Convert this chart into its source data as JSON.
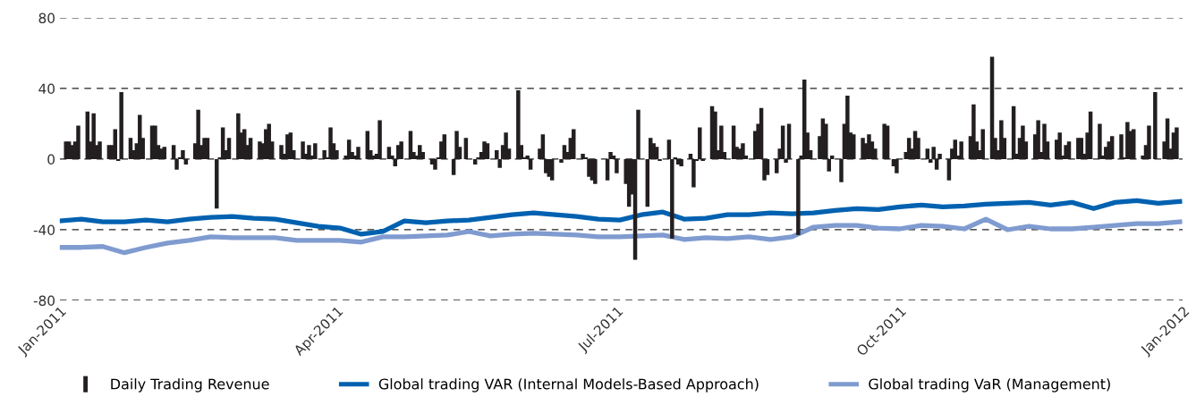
{
  "chart_data": {
    "type": "bar",
    "grid": "y",
    "legend": "bottom",
    "ylim": [
      -80,
      80
    ],
    "yticks": [
      80,
      40,
      0,
      -40,
      -80
    ],
    "xlim": [
      "2011-01-01",
      "2012-01-01"
    ],
    "xticks": [
      {
        "value": "2011-01-01",
        "label": "Jan-2011"
      },
      {
        "value": "2011-04-01",
        "label": "Apr-2011"
      },
      {
        "value": "2011-07-01",
        "label": "Jul-2011"
      },
      {
        "value": "2011-10-01",
        "label": "Oct-2011"
      },
      {
        "value": "2012-01-01",
        "label": "Jan-2012"
      }
    ],
    "series": [
      {
        "name": "Daily Trading Revenue",
        "color": "#231f20",
        "x": [
          "2011-01-03",
          "2011-01-04",
          "2011-01-05",
          "2011-01-06",
          "2011-01-07",
          "2011-01-10",
          "2011-01-11",
          "2011-01-12",
          "2011-01-13",
          "2011-01-14",
          "2011-01-17",
          "2011-01-18",
          "2011-01-19",
          "2011-01-20",
          "2011-01-21",
          "2011-01-24",
          "2011-01-25",
          "2011-01-26",
          "2011-01-27",
          "2011-01-28",
          "2011-01-31",
          "2011-02-01",
          "2011-02-02",
          "2011-02-03",
          "2011-02-04",
          "2011-02-07",
          "2011-02-08",
          "2011-02-09",
          "2011-02-10",
          "2011-02-11",
          "2011-02-14",
          "2011-02-15",
          "2011-02-16",
          "2011-02-17",
          "2011-02-18",
          "2011-02-21",
          "2011-02-22",
          "2011-02-23",
          "2011-02-24",
          "2011-02-25",
          "2011-02-28",
          "2011-03-01",
          "2011-03-02",
          "2011-03-03",
          "2011-03-04",
          "2011-03-07",
          "2011-03-08",
          "2011-03-09",
          "2011-03-10",
          "2011-03-11",
          "2011-03-14",
          "2011-03-15",
          "2011-03-16",
          "2011-03-17",
          "2011-03-18",
          "2011-03-21",
          "2011-03-22",
          "2011-03-23",
          "2011-03-24",
          "2011-03-25",
          "2011-03-28",
          "2011-03-29",
          "2011-03-30",
          "2011-03-31",
          "2011-04-01",
          "2011-04-04",
          "2011-04-05",
          "2011-04-06",
          "2011-04-07",
          "2011-04-08",
          "2011-04-11",
          "2011-04-12",
          "2011-04-13",
          "2011-04-14",
          "2011-04-15",
          "2011-04-18",
          "2011-04-19",
          "2011-04-20",
          "2011-04-21",
          "2011-04-22",
          "2011-04-25",
          "2011-04-26",
          "2011-04-27",
          "2011-04-28",
          "2011-04-29",
          "2011-05-02",
          "2011-05-03",
          "2011-05-04",
          "2011-05-05",
          "2011-05-06",
          "2011-05-09",
          "2011-05-10",
          "2011-05-11",
          "2011-05-12",
          "2011-05-13",
          "2011-05-16",
          "2011-05-17",
          "2011-05-18",
          "2011-05-19",
          "2011-05-20",
          "2011-05-23",
          "2011-05-24",
          "2011-05-25",
          "2011-05-26",
          "2011-05-27",
          "2011-05-30",
          "2011-05-31",
          "2011-06-01",
          "2011-06-02",
          "2011-06-03",
          "2011-06-06",
          "2011-06-07",
          "2011-06-08",
          "2011-06-09",
          "2011-06-10",
          "2011-06-13",
          "2011-06-14",
          "2011-06-15",
          "2011-06-16",
          "2011-06-17",
          "2011-06-20",
          "2011-06-21",
          "2011-06-22",
          "2011-06-23",
          "2011-06-24",
          "2011-06-27",
          "2011-06-28",
          "2011-06-29",
          "2011-06-30",
          "2011-07-01",
          "2011-07-04",
          "2011-07-05",
          "2011-07-06",
          "2011-07-07",
          "2011-07-08",
          "2011-07-11",
          "2011-07-12",
          "2011-07-13",
          "2011-07-14",
          "2011-07-15",
          "2011-07-18",
          "2011-07-19",
          "2011-07-20",
          "2011-07-21",
          "2011-07-22",
          "2011-07-25",
          "2011-07-26",
          "2011-07-27",
          "2011-07-28",
          "2011-07-29",
          "2011-08-01",
          "2011-08-02",
          "2011-08-03",
          "2011-08-04",
          "2011-08-05",
          "2011-08-08",
          "2011-08-09",
          "2011-08-10",
          "2011-08-11",
          "2011-08-12",
          "2011-08-15",
          "2011-08-16",
          "2011-08-17",
          "2011-08-18",
          "2011-08-19",
          "2011-08-22",
          "2011-08-23",
          "2011-08-24",
          "2011-08-25",
          "2011-08-26",
          "2011-08-29",
          "2011-08-30",
          "2011-08-31",
          "2011-09-01",
          "2011-09-02",
          "2011-09-05",
          "2011-09-06",
          "2011-09-07",
          "2011-09-08",
          "2011-09-09",
          "2011-09-12",
          "2011-09-13",
          "2011-09-14",
          "2011-09-15",
          "2011-09-16",
          "2011-09-19",
          "2011-09-20",
          "2011-09-21",
          "2011-09-22",
          "2011-09-23",
          "2011-09-26",
          "2011-09-27",
          "2011-09-28",
          "2011-09-29",
          "2011-09-30",
          "2011-10-03",
          "2011-10-04",
          "2011-10-05",
          "2011-10-06",
          "2011-10-07",
          "2011-10-10",
          "2011-10-11",
          "2011-10-12",
          "2011-10-13",
          "2011-10-14",
          "2011-10-17",
          "2011-10-18",
          "2011-10-19",
          "2011-10-20",
          "2011-10-21",
          "2011-10-24",
          "2011-10-25",
          "2011-10-26",
          "2011-10-27",
          "2011-10-28",
          "2011-10-31",
          "2011-11-01",
          "2011-11-02",
          "2011-11-03",
          "2011-11-04",
          "2011-11-07",
          "2011-11-08",
          "2011-11-09",
          "2011-11-10",
          "2011-11-11",
          "2011-11-14",
          "2011-11-15",
          "2011-11-16",
          "2011-11-17",
          "2011-11-18",
          "2011-11-21",
          "2011-11-22",
          "2011-11-23",
          "2011-11-24",
          "2011-11-25",
          "2011-11-28",
          "2011-11-29",
          "2011-11-30",
          "2011-12-01",
          "2011-12-02",
          "2011-12-05",
          "2011-12-06",
          "2011-12-07",
          "2011-12-08",
          "2011-12-09",
          "2011-12-12",
          "2011-12-13",
          "2011-12-14",
          "2011-12-15",
          "2011-12-16",
          "2011-12-19",
          "2011-12-20",
          "2011-12-21",
          "2011-12-22",
          "2011-12-23",
          "2011-12-26",
          "2011-12-27",
          "2011-12-28",
          "2011-12-29",
          "2011-12-30"
        ],
        "values": [
          10,
          10,
          8,
          10,
          19,
          27,
          10,
          26,
          8,
          10,
          8,
          8,
          17,
          -1,
          38,
          12,
          5,
          9,
          25,
          12,
          19,
          19,
          8,
          6,
          7,
          8,
          -6,
          1,
          5,
          -3,
          9,
          28,
          8,
          12,
          12,
          -28,
          1,
          18,
          5,
          12,
          26,
          15,
          17,
          8,
          12,
          10,
          9,
          17,
          20,
          10,
          8,
          3,
          14,
          15,
          5,
          10,
          3,
          8,
          2,
          9,
          5,
          1,
          18,
          9,
          5,
          2,
          11,
          4,
          2,
          7,
          16,
          5,
          2,
          3,
          22,
          7,
          2,
          -4,
          8,
          10,
          16,
          4,
          2,
          8,
          4,
          -3,
          -6,
          1,
          10,
          14,
          -9,
          16,
          7,
          0,
          12,
          -3,
          1,
          4,
          10,
          9,
          5,
          -5,
          8,
          15,
          6,
          39,
          8,
          1,
          2,
          -6,
          6,
          14,
          -8,
          -10,
          -12,
          -2,
          8,
          4,
          12,
          17,
          3,
          1,
          -10,
          -12,
          -14,
          0,
          -12,
          4,
          2,
          -8,
          -14,
          -27,
          -20,
          -57,
          28,
          -27,
          12,
          9,
          7,
          -1,
          11,
          -45,
          1,
          -3,
          -4,
          3,
          -16,
          -1,
          18,
          -1,
          30,
          27,
          5,
          19,
          4,
          19,
          7,
          6,
          9,
          2,
          16,
          20,
          29,
          -12,
          -9,
          -8,
          6,
          19,
          -2,
          20,
          -43,
          2,
          45,
          15,
          5,
          13,
          23,
          20,
          -7,
          2,
          -13,
          20,
          36,
          15,
          14,
          12,
          9,
          14,
          10,
          6,
          20,
          19,
          0,
          -4,
          -8,
          4,
          12,
          6,
          16,
          12,
          6,
          -2,
          7,
          -6,
          3,
          -12,
          6,
          11,
          2,
          10,
          13,
          31,
          10,
          5,
          17,
          58,
          12,
          5,
          22,
          12,
          30,
          3,
          12,
          19,
          10,
          14,
          22,
          4,
          20,
          10,
          11,
          15,
          2,
          8,
          10,
          12,
          12,
          3,
          15,
          27,
          20,
          2,
          7,
          10,
          13,
          14,
          1,
          21,
          16,
          17,
          2,
          8,
          19,
          0,
          38,
          10,
          23,
          6,
          15,
          18
        ]
      },
      {
        "name": "Global trading VAR (Internal Models-Based Approach)",
        "type": "line",
        "color": "#0061b0",
        "x": [
          "2011-01-01",
          "2011-01-08",
          "2011-01-15",
          "2011-01-22",
          "2011-01-29",
          "2011-02-05",
          "2011-02-12",
          "2011-02-19",
          "2011-02-26",
          "2011-03-05",
          "2011-03-12",
          "2011-03-19",
          "2011-03-26",
          "2011-04-02",
          "2011-04-09",
          "2011-04-16",
          "2011-04-23",
          "2011-04-30",
          "2011-05-07",
          "2011-05-14",
          "2011-05-21",
          "2011-05-28",
          "2011-06-04",
          "2011-06-11",
          "2011-06-18",
          "2011-06-25",
          "2011-07-02",
          "2011-07-09",
          "2011-07-16",
          "2011-07-23",
          "2011-07-30",
          "2011-08-06",
          "2011-08-13",
          "2011-08-20",
          "2011-08-27",
          "2011-09-03",
          "2011-09-10",
          "2011-09-17",
          "2011-09-24",
          "2011-10-01",
          "2011-10-08",
          "2011-10-15",
          "2011-10-22",
          "2011-10-29",
          "2011-11-05",
          "2011-11-12",
          "2011-11-19",
          "2011-11-26",
          "2011-12-03",
          "2011-12-10",
          "2011-12-17",
          "2011-12-24",
          "2011-12-31"
        ],
        "values": [
          -35,
          -34,
          -35.5,
          -35.5,
          -34.5,
          -35.5,
          -34,
          -33,
          -32.5,
          -33.5,
          -34,
          -36,
          -38,
          -39,
          -42.5,
          -41,
          -35,
          -36,
          -35,
          -34.5,
          -33,
          -31.5,
          -30.5,
          -31.5,
          -32.5,
          -34,
          -34.5,
          -31.5,
          -30,
          -34,
          -33.5,
          -31.5,
          -31.5,
          -30.5,
          -31,
          -30.5,
          -29,
          -28,
          -28.5,
          -27,
          -26,
          -27,
          -26.5,
          -25.5,
          -25,
          -24.5,
          -26,
          -24.5,
          -28,
          -24.5,
          -23.5,
          -25,
          -24
        ]
      },
      {
        "name": "Global trading VaR (Management)",
        "type": "line",
        "color": "#7f9bd0",
        "x": [
          "2011-01-01",
          "2011-01-08",
          "2011-01-15",
          "2011-01-22",
          "2011-01-29",
          "2011-02-05",
          "2011-02-12",
          "2011-02-19",
          "2011-02-26",
          "2011-03-05",
          "2011-03-12",
          "2011-03-19",
          "2011-03-26",
          "2011-04-02",
          "2011-04-09",
          "2011-04-16",
          "2011-04-23",
          "2011-04-30",
          "2011-05-07",
          "2011-05-14",
          "2011-05-21",
          "2011-05-28",
          "2011-06-04",
          "2011-06-11",
          "2011-06-18",
          "2011-06-25",
          "2011-07-02",
          "2011-07-09",
          "2011-07-16",
          "2011-07-23",
          "2011-07-30",
          "2011-08-06",
          "2011-08-13",
          "2011-08-20",
          "2011-08-27",
          "2011-09-03",
          "2011-09-10",
          "2011-09-17",
          "2011-09-24",
          "2011-10-01",
          "2011-10-08",
          "2011-10-15",
          "2011-10-22",
          "2011-10-29",
          "2011-11-05",
          "2011-11-12",
          "2011-11-19",
          "2011-11-26",
          "2011-12-03",
          "2011-12-10",
          "2011-12-17",
          "2011-12-24",
          "2011-12-31"
        ],
        "values": [
          -50,
          -50,
          -49.5,
          -53,
          -50,
          -47.5,
          -46,
          -44,
          -44.5,
          -44.5,
          -44.5,
          -46,
          -46,
          -46,
          -47,
          -44,
          -44,
          -43.5,
          -43,
          -41,
          -43.5,
          -42.5,
          -42,
          -42.5,
          -43,
          -44,
          -44,
          -43.5,
          -43,
          -45.5,
          -44.5,
          -45,
          -44,
          -45.5,
          -44,
          -38.5,
          -37.5,
          -37.5,
          -39,
          -39.5,
          -37.5,
          -38,
          -39.5,
          -34,
          -40,
          -38,
          -39.5,
          -39.5,
          -38.5,
          -37.5,
          -36.5,
          -36.5,
          -35.5
        ]
      }
    ]
  }
}
